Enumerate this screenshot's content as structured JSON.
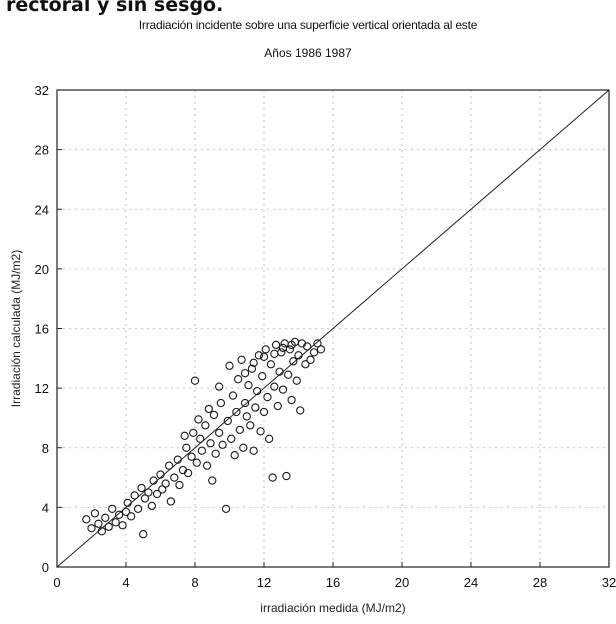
{
  "top_caption": "rectoral y sin sesgo.",
  "chart_data": {
    "type": "scatter",
    "title": "Irradiación incidente sobre una superficie vertical orientada al este",
    "subtitle": "Años 1986 1987",
    "xlabel": "irradiación medida (MJ/m2)",
    "ylabel": "Irradiación calculada (MJ/m2)",
    "xlim": [
      0,
      32
    ],
    "ylim": [
      0,
      32
    ],
    "xticks": [
      "0",
      "4",
      "8",
      "12",
      "16",
      "20",
      "24",
      "28",
      "32"
    ],
    "yticks": [
      "0",
      "4",
      "8",
      "12",
      "16",
      "20",
      "24",
      "28",
      "32"
    ],
    "grid": true,
    "marker": "open-circle",
    "reference_line": {
      "x": [
        0,
        32
      ],
      "y": [
        0,
        32
      ]
    },
    "points": [
      [
        1.7,
        3.2
      ],
      [
        2.0,
        2.6
      ],
      [
        2.2,
        3.6
      ],
      [
        2.4,
        2.9
      ],
      [
        2.6,
        2.4
      ],
      [
        2.8,
        3.3
      ],
      [
        3.0,
        2.7
      ],
      [
        3.2,
        3.9
      ],
      [
        3.4,
        3.0
      ],
      [
        3.6,
        3.5
      ],
      [
        3.8,
        2.8
      ],
      [
        4.0,
        3.7
      ],
      [
        4.1,
        4.3
      ],
      [
        4.3,
        3.4
      ],
      [
        4.5,
        4.8
      ],
      [
        4.7,
        3.9
      ],
      [
        4.9,
        5.3
      ],
      [
        5.0,
        2.2
      ],
      [
        5.1,
        4.6
      ],
      [
        5.3,
        5.0
      ],
      [
        5.5,
        4.1
      ],
      [
        5.6,
        5.8
      ],
      [
        5.8,
        4.9
      ],
      [
        6.0,
        6.2
      ],
      [
        6.1,
        5.2
      ],
      [
        6.3,
        5.6
      ],
      [
        6.5,
        6.8
      ],
      [
        6.6,
        4.4
      ],
      [
        6.8,
        6.0
      ],
      [
        7.0,
        7.2
      ],
      [
        7.1,
        5.5
      ],
      [
        7.3,
        6.5
      ],
      [
        7.5,
        8.0
      ],
      [
        7.6,
        6.3
      ],
      [
        7.8,
        7.4
      ],
      [
        7.9,
        9.0
      ],
      [
        8.0,
        12.5
      ],
      [
        8.1,
        7.0
      ],
      [
        8.3,
        8.6
      ],
      [
        8.4,
        7.8
      ],
      [
        8.6,
        9.5
      ],
      [
        8.7,
        6.8
      ],
      [
        8.9,
        8.3
      ],
      [
        9.0,
        5.8
      ],
      [
        9.1,
        10.2
      ],
      [
        9.2,
        7.6
      ],
      [
        9.4,
        9.0
      ],
      [
        9.5,
        11.0
      ],
      [
        9.6,
        8.2
      ],
      [
        9.8,
        3.9
      ],
      [
        9.9,
        9.8
      ],
      [
        10.0,
        13.5
      ],
      [
        10.1,
        8.6
      ],
      [
        10.2,
        11.5
      ],
      [
        10.3,
        7.5
      ],
      [
        10.4,
        10.4
      ],
      [
        10.5,
        12.6
      ],
      [
        10.6,
        9.2
      ],
      [
        10.7,
        13.9
      ],
      [
        10.8,
        8.0
      ],
      [
        10.9,
        11.0
      ],
      [
        11.0,
        10.1
      ],
      [
        11.1,
        12.2
      ],
      [
        11.2,
        9.5
      ],
      [
        11.3,
        13.3
      ],
      [
        11.4,
        7.8
      ],
      [
        11.5,
        10.7
      ],
      [
        11.6,
        11.8
      ],
      [
        11.7,
        14.2
      ],
      [
        11.8,
        9.1
      ],
      [
        11.9,
        12.8
      ],
      [
        12.0,
        10.4
      ],
      [
        12.1,
        14.6
      ],
      [
        12.2,
        11.4
      ],
      [
        12.3,
        8.6
      ],
      [
        12.4,
        13.6
      ],
      [
        12.5,
        6.0
      ],
      [
        12.6,
        12.1
      ],
      [
        12.7,
        14.9
      ],
      [
        12.8,
        10.8
      ],
      [
        12.9,
        13.1
      ],
      [
        13.0,
        14.4
      ],
      [
        13.1,
        11.9
      ],
      [
        13.2,
        15.0
      ],
      [
        13.3,
        6.1
      ],
      [
        13.4,
        12.9
      ],
      [
        13.5,
        14.6
      ],
      [
        13.6,
        11.2
      ],
      [
        13.7,
        13.8
      ],
      [
        13.8,
        15.1
      ],
      [
        13.9,
        12.5
      ],
      [
        14.0,
        14.2
      ],
      [
        14.1,
        10.5
      ],
      [
        14.2,
        15.0
      ],
      [
        14.4,
        13.6
      ],
      [
        14.5,
        14.8
      ],
      [
        14.7,
        13.9
      ],
      [
        14.9,
        14.4
      ],
      [
        15.1,
        15.0
      ],
      [
        15.3,
        14.6
      ],
      [
        12.0,
        14.1
      ],
      [
        12.6,
        14.3
      ],
      [
        13.1,
        14.7
      ],
      [
        13.6,
        14.9
      ],
      [
        11.4,
        13.7
      ],
      [
        10.9,
        13.0
      ],
      [
        9.4,
        12.1
      ],
      [
        8.8,
        10.6
      ],
      [
        8.2,
        9.9
      ],
      [
        7.4,
        8.8
      ]
    ]
  }
}
